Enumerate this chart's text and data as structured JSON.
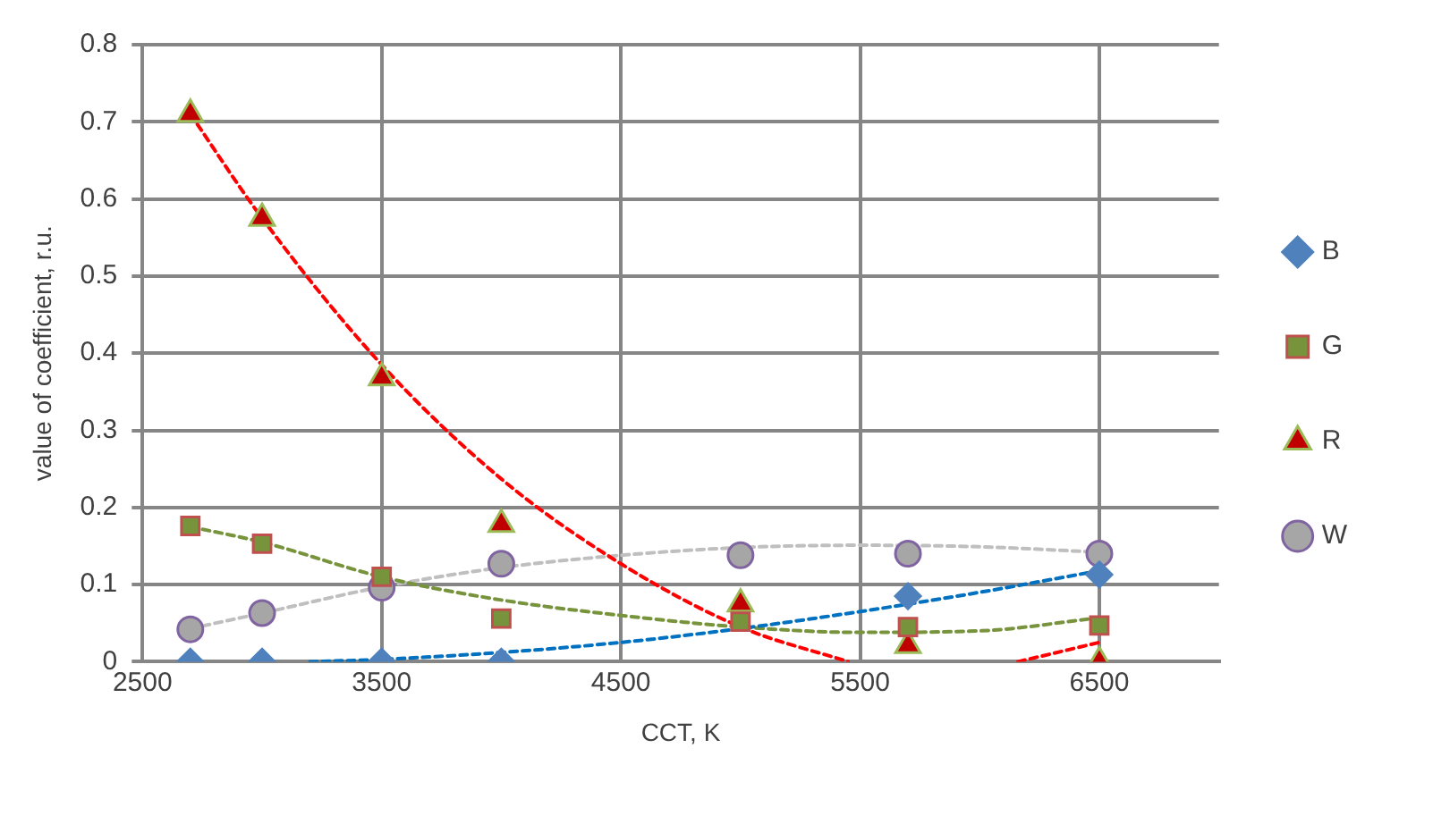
{
  "chart_data": {
    "type": "scatter",
    "xlabel": "CCT, K",
    "ylabel": "value of coefficient, r.u.",
    "xlim": [
      2500,
      7000
    ],
    "xticks": [
      2500,
      3500,
      4500,
      5500,
      6500
    ],
    "ylim": [
      0,
      0.8
    ],
    "yticks": [
      0,
      0.1,
      0.2,
      0.3,
      0.4,
      0.5,
      0.6,
      0.7,
      0.8
    ],
    "grid": true,
    "legend": "right",
    "series": [
      {
        "name": "B",
        "marker": "diamond",
        "color": "#4f81bd",
        "x": [
          2700,
          3000,
          3500,
          4000,
          5700,
          6500
        ],
        "values": [
          0,
          0,
          0,
          0,
          0.085,
          0.113
        ]
      },
      {
        "name": "G",
        "marker": "square",
        "color": "#77933c",
        "x": [
          2700,
          3000,
          3500,
          4000,
          5000,
          5700,
          6500
        ],
        "values": [
          0.176,
          0.153,
          0.11,
          0.056,
          0.052,
          0.045,
          0.047
        ]
      },
      {
        "name": "R",
        "marker": "triangle",
        "color": "#c00000",
        "x": [
          2700,
          3000,
          3500,
          4000,
          5000,
          5700,
          6500
        ],
        "values": [
          0.71,
          0.575,
          0.368,
          0.178,
          0.075,
          0.021,
          0
        ]
      },
      {
        "name": "W",
        "marker": "circle",
        "color": "#a6a6a6",
        "x": [
          2700,
          3000,
          3500,
          4000,
          5000,
          5700,
          6500
        ],
        "values": [
          0.042,
          0.063,
          0.096,
          0.127,
          0.138,
          0.14,
          0.14
        ]
      },
      {
        "type": "line",
        "marker": "none",
        "line_style": "dashed",
        "color": "#0070c0",
        "x": [
          3200,
          3500,
          4000,
          4500,
          5000,
          5500,
          6000,
          6500
        ],
        "values": [
          0,
          0.003,
          0.012,
          0.025,
          0.043,
          0.065,
          0.09,
          0.118
        ]
      },
      {
        "type": "line",
        "marker": "none",
        "line_style": "dashed",
        "color": "#77933c",
        "x": [
          2700,
          3000,
          3500,
          4000,
          4500,
          5000,
          5500,
          6000,
          6500
        ],
        "values": [
          0.175,
          0.155,
          0.11,
          0.08,
          0.06,
          0.045,
          0.038,
          0.04,
          0.057
        ]
      },
      {
        "type": "line",
        "marker": "none",
        "line_style": "dashed",
        "color": "#ff0000",
        "x": [
          2700,
          3000,
          3500,
          4000,
          4500,
          5000,
          5450,
          5800,
          6160,
          6500
        ],
        "values": [
          0.71,
          0.575,
          0.385,
          0.237,
          0.127,
          0.045,
          0,
          null,
          0,
          0.025
        ]
      },
      {
        "type": "line",
        "marker": "none",
        "line_style": "dashed",
        "color": "#bfbfbf",
        "x": [
          2700,
          3000,
          3500,
          4000,
          4500,
          5000,
          5500,
          6000,
          6500
        ],
        "values": [
          0.043,
          0.063,
          0.097,
          0.122,
          0.138,
          0.148,
          0.151,
          0.149,
          0.142
        ]
      }
    ]
  }
}
